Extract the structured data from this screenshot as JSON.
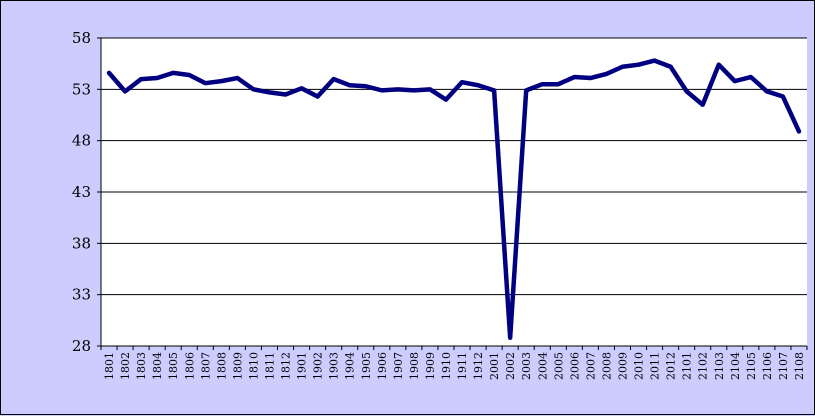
{
  "chart_data": {
    "type": "line",
    "title": "",
    "xlabel": "",
    "ylabel": "",
    "ylim": [
      28,
      58
    ],
    "yticks": [
      "58",
      "53",
      "48",
      "43",
      "38",
      "33",
      "28"
    ],
    "grid": "horizontal",
    "legend": "none",
    "colors": {
      "line": "#000080",
      "plot_bg": "#ffffff",
      "frame_bg": "#ccccff",
      "grid": "#000000"
    },
    "categories": [
      "1801",
      "1802",
      "1803",
      "1804",
      "1805",
      "1806",
      "1807",
      "1808",
      "1809",
      "1810",
      "1811",
      "1812",
      "1901",
      "1902",
      "1903",
      "1904",
      "1905",
      "1906",
      "1907",
      "1908",
      "1909",
      "1910",
      "1911",
      "1912",
      "2001",
      "2002",
      "2003",
      "2004",
      "2005",
      "2006",
      "2007",
      "2008",
      "2009",
      "2010",
      "2011",
      "2012",
      "2101",
      "2102",
      "2103",
      "2104",
      "2105",
      "2106",
      "2107",
      "2108"
    ],
    "series": [
      {
        "values": [
          54.6,
          52.8,
          54.0,
          54.1,
          54.6,
          54.4,
          53.6,
          53.8,
          54.1,
          53.0,
          52.7,
          52.5,
          53.1,
          52.3,
          54.0,
          53.4,
          53.3,
          52.9,
          53.0,
          52.9,
          53.0,
          52.0,
          53.7,
          53.4,
          52.9,
          28.8,
          52.9,
          53.5,
          53.5,
          54.2,
          54.1,
          54.5,
          55.2,
          55.4,
          55.8,
          55.2,
          52.8,
          51.5,
          55.4,
          53.8,
          54.2,
          52.8,
          52.3,
          48.9
        ]
      }
    ]
  }
}
